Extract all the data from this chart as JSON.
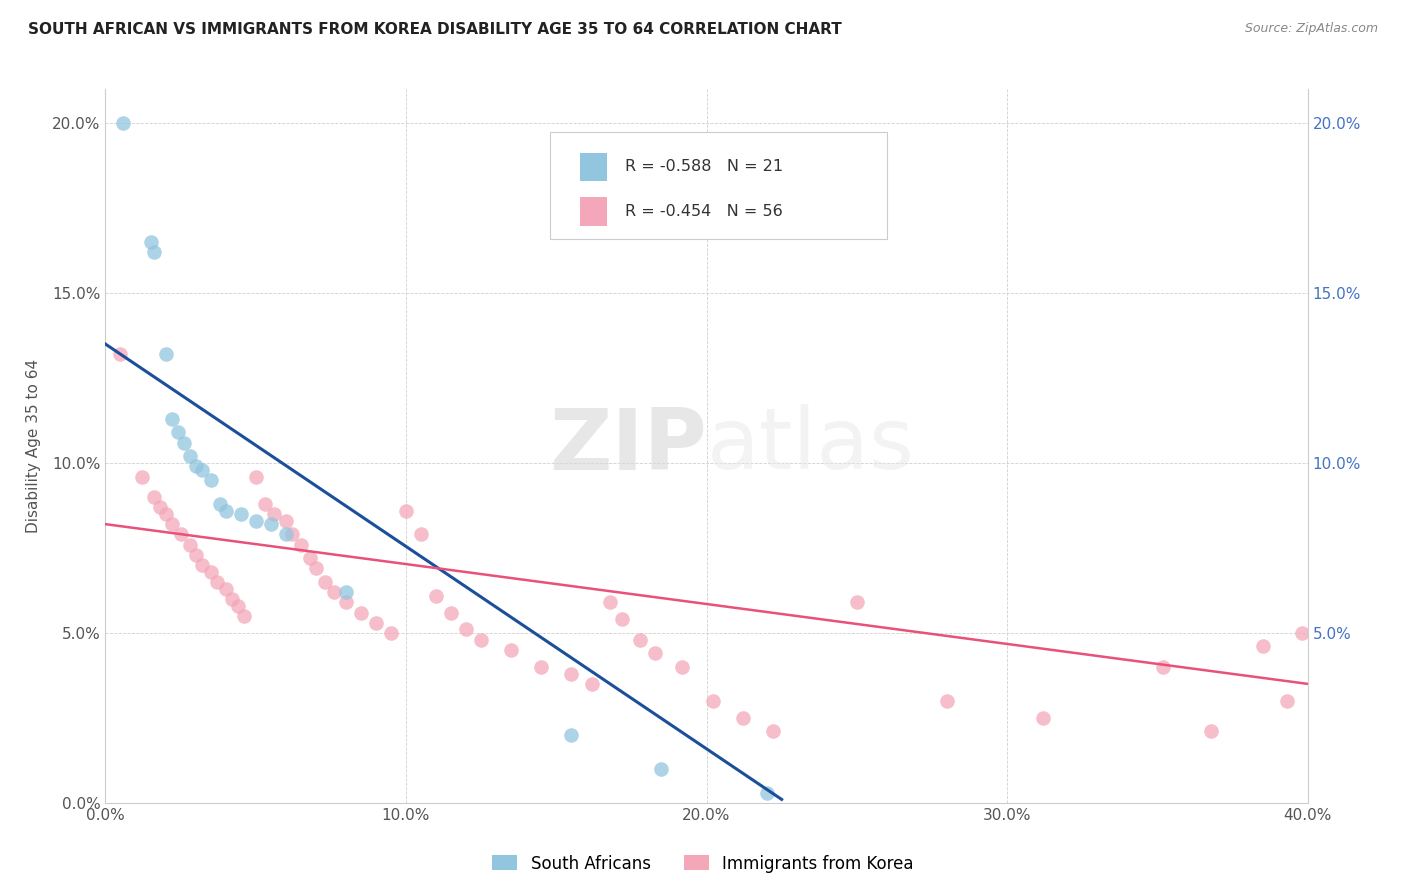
{
  "title": "SOUTH AFRICAN VS IMMIGRANTS FROM KOREA DISABILITY AGE 35 TO 64 CORRELATION CHART",
  "source": "Source: ZipAtlas.com",
  "ylabel": "Disability Age 35 to 64",
  "xlim": [
    0.0,
    0.4
  ],
  "ylim": [
    0.0,
    0.21
  ],
  "xticks": [
    0.0,
    0.1,
    0.2,
    0.3,
    0.4
  ],
  "xtick_labels": [
    "0.0%",
    "10.0%",
    "20.0%",
    "30.0%",
    "40.0%"
  ],
  "yticks": [
    0.0,
    0.05,
    0.1,
    0.15,
    0.2
  ],
  "ytick_labels_left": [
    "0.0%",
    "5.0%",
    "10.0%",
    "15.0%",
    "20.0%"
  ],
  "ytick_labels_right": [
    "",
    "5.0%",
    "10.0%",
    "15.0%",
    "20.0%"
  ],
  "legend_r_blue": "R = -0.588",
  "legend_n_blue": "N = 21",
  "legend_r_pink": "R = -0.454",
  "legend_n_pink": "N = 56",
  "legend_label_blue": "South Africans",
  "legend_label_pink": "Immigrants from Korea",
  "blue_color": "#92C5DE",
  "pink_color": "#F4A7B9",
  "blue_line_color": "#1B4F9C",
  "pink_line_color": "#E8517A",
  "blue_scatter_alpha": 0.75,
  "pink_scatter_alpha": 0.75,
  "blue_x": [
    0.006,
    0.015,
    0.016,
    0.02,
    0.022,
    0.024,
    0.026,
    0.028,
    0.03,
    0.032,
    0.035,
    0.038,
    0.04,
    0.045,
    0.05,
    0.055,
    0.06,
    0.08,
    0.155,
    0.185,
    0.22
  ],
  "blue_y": [
    0.2,
    0.165,
    0.162,
    0.132,
    0.113,
    0.109,
    0.106,
    0.102,
    0.099,
    0.098,
    0.095,
    0.088,
    0.086,
    0.085,
    0.083,
    0.082,
    0.079,
    0.062,
    0.02,
    0.01,
    0.003
  ],
  "pink_x": [
    0.005,
    0.012,
    0.016,
    0.018,
    0.02,
    0.022,
    0.025,
    0.028,
    0.03,
    0.032,
    0.035,
    0.037,
    0.04,
    0.042,
    0.044,
    0.046,
    0.05,
    0.053,
    0.056,
    0.06,
    0.062,
    0.065,
    0.068,
    0.07,
    0.073,
    0.076,
    0.08,
    0.085,
    0.09,
    0.095,
    0.1,
    0.105,
    0.11,
    0.115,
    0.12,
    0.125,
    0.135,
    0.145,
    0.155,
    0.162,
    0.168,
    0.172,
    0.178,
    0.183,
    0.192,
    0.202,
    0.212,
    0.222,
    0.25,
    0.28,
    0.312,
    0.352,
    0.368,
    0.385,
    0.393,
    0.398
  ],
  "pink_y": [
    0.132,
    0.096,
    0.09,
    0.087,
    0.085,
    0.082,
    0.079,
    0.076,
    0.073,
    0.07,
    0.068,
    0.065,
    0.063,
    0.06,
    0.058,
    0.055,
    0.096,
    0.088,
    0.085,
    0.083,
    0.079,
    0.076,
    0.072,
    0.069,
    0.065,
    0.062,
    0.059,
    0.056,
    0.053,
    0.05,
    0.086,
    0.079,
    0.061,
    0.056,
    0.051,
    0.048,
    0.045,
    0.04,
    0.038,
    0.035,
    0.059,
    0.054,
    0.048,
    0.044,
    0.04,
    0.03,
    0.025,
    0.021,
    0.059,
    0.03,
    0.025,
    0.04,
    0.021,
    0.046,
    0.03,
    0.05
  ],
  "blue_line_x0": 0.0,
  "blue_line_x1": 0.225,
  "blue_line_y0": 0.135,
  "blue_line_y1": 0.001,
  "pink_line_x0": 0.0,
  "pink_line_x1": 0.4,
  "pink_line_y0": 0.082,
  "pink_line_y1": 0.035
}
